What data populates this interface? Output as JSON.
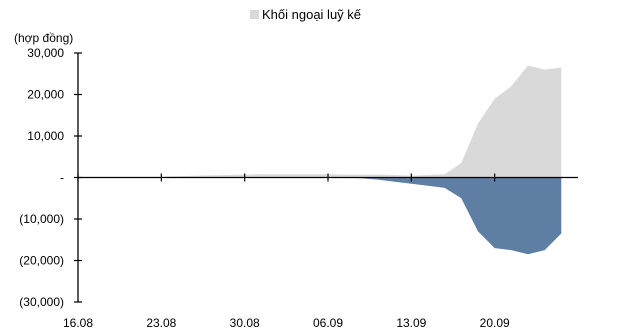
{
  "chart_data": {
    "type": "area",
    "unit_label": "(hợp đồng)",
    "ylim": [
      -30000,
      30000
    ],
    "yticks": [
      30000,
      20000,
      10000,
      0,
      -10000,
      -20000,
      -30000
    ],
    "ytick_labels": [
      "30,000",
      "20,000",
      "10,000",
      "-",
      "(10,000)",
      "(20,000)",
      "(30,000)"
    ],
    "xtick_labels": [
      "16.08",
      "23.08",
      "30.08",
      "06.09",
      "13.09",
      "20.09"
    ],
    "x_count": 30,
    "xtick_indices": [
      0,
      5,
      10,
      15,
      20,
      25
    ],
    "legend_position": "top-center",
    "grid": false,
    "series": [
      {
        "name": "Khối ngoại luỹ kế",
        "color": "#d9d9d9",
        "legend": true,
        "values": [
          0,
          0,
          0,
          0,
          100,
          200,
          300,
          400,
          500,
          600,
          700,
          800,
          800,
          800,
          800,
          800,
          700,
          700,
          700,
          600,
          400,
          600,
          800,
          3500,
          13000,
          19000,
          22000,
          27000,
          26000,
          26500
        ]
      },
      {
        "name": "",
        "color": "#5f7ea4",
        "legend": false,
        "values": [
          0,
          0,
          0,
          0,
          0,
          0,
          0,
          0,
          0,
          0,
          0,
          0,
          0,
          0,
          0,
          0,
          -100,
          -200,
          -500,
          -1000,
          -1500,
          -2000,
          -2500,
          -5000,
          -13000,
          -17000,
          -17500,
          -18500,
          -17500,
          -13500
        ]
      }
    ]
  }
}
